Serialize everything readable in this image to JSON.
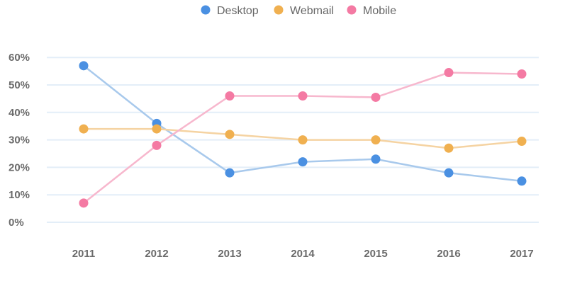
{
  "chart_data": {
    "type": "line",
    "categories": [
      "2011",
      "2012",
      "2013",
      "2014",
      "2015",
      "2016",
      "2017"
    ],
    "series": [
      {
        "name": "Desktop",
        "color": "#4a90e2",
        "line_color": "#a8c9ec",
        "values": [
          57,
          36,
          18,
          22,
          23,
          18,
          15
        ]
      },
      {
        "name": "Webmail",
        "color": "#f0b050",
        "line_color": "#f5d3a2",
        "values": [
          34,
          34,
          32,
          30,
          30,
          27,
          29.5
        ]
      },
      {
        "name": "Mobile",
        "color": "#f47aa3",
        "line_color": "#f7b7cd",
        "values": [
          7,
          28,
          46,
          46,
          45.5,
          54.5,
          54
        ]
      }
    ],
    "y_ticks": [
      "0%",
      "10%",
      "20%",
      "30%",
      "40%",
      "50%",
      "60%"
    ],
    "ylim": [
      0,
      60
    ],
    "grid": true,
    "legend_position": "top-center",
    "title": "",
    "xlabel": "",
    "ylabel": ""
  }
}
